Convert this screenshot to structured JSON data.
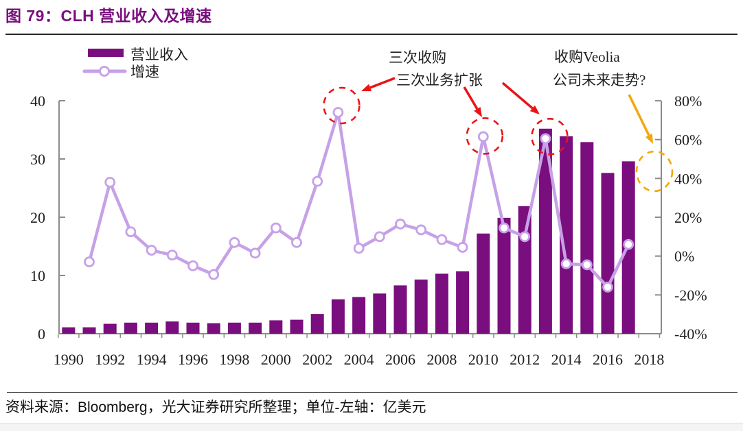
{
  "figure": {
    "title": "图 79：CLH 营业收入及增速",
    "source_prefix": "资料来源：",
    "source_bloomberg": "Bloomberg",
    "source_suffix": "，光大证券研究所整理；单位-左轴：亿美元"
  },
  "colors": {
    "title": "#7A0E7E",
    "bar": "#7A0E7E",
    "line": "#C6A1E7",
    "marker_fill": "#FFFFFF",
    "annotation_red": "#E91417",
    "annotation_yellow": "#F2A70B",
    "axis": "#8C8C8C",
    "text": "#1F1F1F"
  },
  "legend": {
    "revenue_label": "营业收入",
    "growth_label": "增速"
  },
  "annotations": {
    "acquisitions_line1": "三次收购",
    "acquisitions_line2": "三次业务扩张",
    "acquisition_circle_years": [
      2003,
      2010,
      2013
    ],
    "veolia_line1": "收购Veolia",
    "veolia_line2": "公司未来走势?"
  },
  "chart_data": {
    "type": "bar+line combo",
    "title": "CLH 营业收入及增速",
    "categories": [
      1990,
      1991,
      1992,
      1993,
      1994,
      1995,
      1996,
      1997,
      1998,
      1999,
      2000,
      2001,
      2002,
      2003,
      2004,
      2005,
      2006,
      2007,
      2008,
      2009,
      2010,
      2011,
      2012,
      2013,
      2014,
      2015,
      2016,
      2017
    ],
    "series": [
      {
        "name": "营业收入",
        "type": "bar",
        "axis": "left",
        "unit": "亿美元",
        "values": [
          1.1,
          1.1,
          1.7,
          1.9,
          1.9,
          2.1,
          1.9,
          1.8,
          1.9,
          1.9,
          2.3,
          2.4,
          3.4,
          5.9,
          6.3,
          6.9,
          8.3,
          9.3,
          10.3,
          10.7,
          17.2,
          19.9,
          21.9,
          35.2,
          33.9,
          32.9,
          27.6,
          29.6
        ]
      },
      {
        "name": "增速",
        "type": "line",
        "axis": "right",
        "unit": "%",
        "values": [
          null,
          -3,
          38,
          12.5,
          3,
          0.5,
          -5,
          -9.5,
          7,
          1.5,
          14.5,
          7,
          38.5,
          74,
          4,
          10,
          16.5,
          13.5,
          8.5,
          4.5,
          61.5,
          14.5,
          10,
          60.5,
          -4,
          -4.5,
          -16,
          6
        ]
      }
    ],
    "left_axis": {
      "ticks": [
        0,
        10,
        20,
        30,
        40
      ],
      "range": [
        0,
        40
      ]
    },
    "right_axis": {
      "ticks_pct": [
        -40,
        -20,
        0,
        20,
        40,
        60,
        80
      ],
      "range_pct": [
        -40,
        80
      ]
    },
    "x_axis": {
      "tick_labels": [
        1990,
        1992,
        1994,
        1996,
        1998,
        2000,
        2002,
        2004,
        2006,
        2008,
        2010,
        2012,
        2014,
        2016,
        2018
      ]
    },
    "grid": false,
    "legend_position": "top-left"
  }
}
